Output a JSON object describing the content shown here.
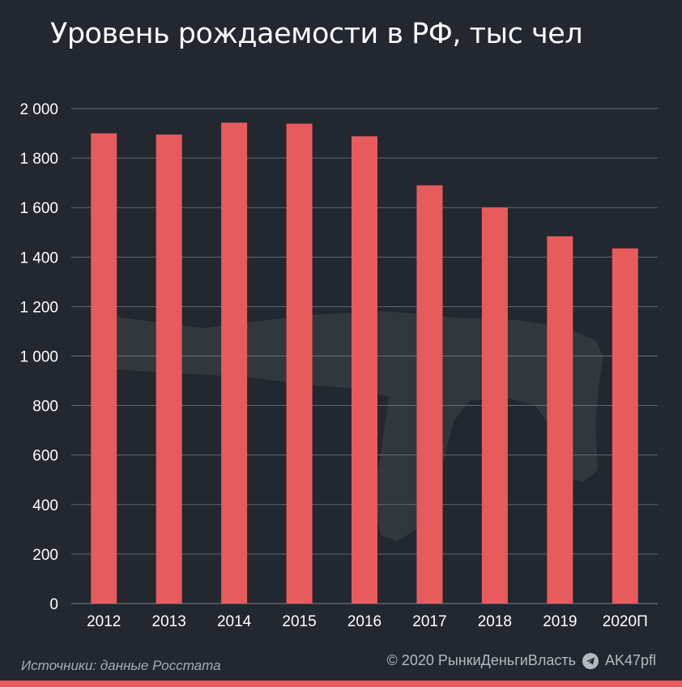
{
  "chart_data": {
    "type": "bar",
    "title": "Уровень рождаемости в РФ, тыс чел",
    "categories": [
      "2012",
      "2013",
      "2014",
      "2015",
      "2016",
      "2017",
      "2018",
      "2019",
      "2020П"
    ],
    "values": [
      1900,
      1895,
      1943,
      1939,
      1888,
      1690,
      1600,
      1484,
      1435
    ],
    "ylim": [
      0,
      2000
    ],
    "yticks": [
      0,
      200,
      400,
      600,
      800,
      1000,
      1200,
      1400,
      1600,
      1800,
      2000
    ],
    "ytick_labels": [
      "0",
      "200",
      "400",
      "600",
      "800",
      "1 000",
      "1 200",
      "1 400",
      "1 600",
      "1 800",
      "2 000"
    ],
    "grid": true,
    "bar_color": "#e85b5d"
  },
  "footer": {
    "source": "Источники: данные Росстата",
    "copyright": "© 2020  РынкиДеньгиВласть",
    "channel": "AK47pfl"
  },
  "colors": {
    "background": "#23272f",
    "bar": "#e85b5d",
    "grid": "#6b6f78"
  }
}
